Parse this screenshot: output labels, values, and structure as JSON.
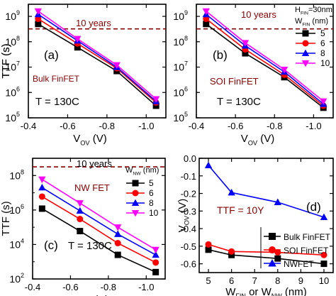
{
  "chart_data": [
    {
      "id": "a",
      "type": "line",
      "panel_label": "(a)",
      "device_label": "Bulk FinFET",
      "temperature_label": "T = 130C",
      "threshold_label": "10 years",
      "threshold_value": 320000000.0,
      "ylabel_main": "TTF (s)",
      "xlabel_main": "V",
      "xlabel_sub": "OV",
      "xlabel_unit": "(V)",
      "log_y": true,
      "ylim": [
        100000,
        3000000000
      ],
      "xlim": [
        -0.4,
        -1.1
      ],
      "xticks": [
        -0.4,
        -0.6,
        -0.8,
        -1.0
      ],
      "xtick_labels": [
        "-0.4",
        "-0.6",
        "-0.8",
        "-1.0"
      ],
      "yticks": [
        100000,
        1000000,
        10000000,
        100000000,
        1000000000
      ],
      "ytick_labels": [
        "10",
        "10",
        "10",
        "10",
        "10"
      ],
      "ytick_exps": [
        "5",
        "6",
        "7",
        "8",
        "9"
      ],
      "x": [
        -0.45,
        -0.65,
        -0.85,
        -1.05
      ],
      "series": [
        {
          "name": "5",
          "marker": "square",
          "color": "#000000",
          "values": [
            500000000.0,
            60000000.0,
            7000000.0,
            300000.0
          ]
        },
        {
          "name": "6",
          "marker": "circle",
          "color": "#ff0000",
          "values": [
            800000000.0,
            85000000.0,
            9000000.0,
            400000.0
          ]
        },
        {
          "name": "8",
          "marker": "triangle-up",
          "color": "#0000ff",
          "values": [
            1200000000.0,
            110000000.0,
            10000000.0,
            450000.0
          ]
        },
        {
          "name": "10",
          "marker": "triangle-down",
          "color": "#ff00ff",
          "values": [
            1600000000.0,
            130000000.0,
            12000000.0,
            550000.0
          ]
        }
      ]
    },
    {
      "id": "b",
      "type": "line",
      "panel_label": "(b)",
      "device_label": "SOI FinFET",
      "temperature_label": "T = 130C",
      "threshold_label": "10 years",
      "threshold_value": 320000000.0,
      "ylabel_main": "TTF (s)",
      "xlabel_main": "V",
      "xlabel_sub": "OV",
      "xlabel_unit": "(V)",
      "log_y": true,
      "ylim": [
        100000,
        3000000000
      ],
      "xlim": [
        -0.4,
        -1.1
      ],
      "xticks": [
        -0.4,
        -0.6,
        -0.8,
        -1.0
      ],
      "xtick_labels": [
        "-0.4",
        "-0.6",
        "-0.8",
        "-1.0"
      ],
      "yticks": [
        100000,
        1000000,
        10000000,
        100000000,
        1000000000
      ],
      "ytick_labels": [
        "10",
        "10",
        "10",
        "10",
        "10"
      ],
      "ytick_exps": [
        "5",
        "6",
        "7",
        "8",
        "9"
      ],
      "legend_header_main": "H",
      "legend_header_sub": "FIN",
      "legend_header_rest": "=30nm",
      "legend_title_main": "W",
      "legend_title_sub": "FIN",
      "legend_title_rest": " (nm)",
      "x": [
        -0.45,
        -0.65,
        -0.85,
        -1.05
      ],
      "series": [
        {
          "name": "5",
          "marker": "square",
          "color": "#000000",
          "values": [
            500000000.0,
            35000000.0,
            4000000.0,
            250000.0
          ]
        },
        {
          "name": "6",
          "marker": "circle",
          "color": "#ff0000",
          "values": [
            800000000.0,
            50000000.0,
            5000000.0,
            300000.0
          ]
        },
        {
          "name": "8",
          "marker": "triangle-up",
          "color": "#0000ff",
          "values": [
            1200000000.0,
            70000000.0,
            6500000.0,
            350000.0
          ]
        },
        {
          "name": "10",
          "marker": "triangle-down",
          "color": "#ff00ff",
          "values": [
            1600000000.0,
            90000000.0,
            8000000.0,
            450000.0
          ]
        }
      ]
    },
    {
      "id": "c",
      "type": "line",
      "panel_label": "(c)",
      "device_label": "NW FET",
      "temperature_label": "T = 130C",
      "threshold_label": "10 years",
      "threshold_value": 320000000.0,
      "ylabel_main": "TTF (s)",
      "xlabel_main": "V",
      "xlabel_sub": "OV",
      "xlabel_unit": "(V)",
      "log_y": true,
      "ylim": [
        100,
        1000000000
      ],
      "xlim": [
        -0.4,
        -1.1
      ],
      "xticks": [
        -0.4,
        -0.6,
        -0.8,
        -1.0
      ],
      "xtick_labels": [
        "-0.4",
        "-0.6",
        "-0.8",
        "-1.0"
      ],
      "yticks": [
        100,
        10000,
        1000000,
        100000000
      ],
      "ytick_labels": [
        "10",
        "10",
        "10",
        "10"
      ],
      "ytick_exps": [
        "2",
        "4",
        "6",
        "8"
      ],
      "legend_title_main": "W",
      "legend_title_sub": "NW",
      "legend_title_rest": " (nm)",
      "x": [
        -0.45,
        -0.65,
        -0.85,
        -1.05
      ],
      "series": [
        {
          "name": "5",
          "marker": "square",
          "color": "#000000",
          "values": [
            1200000.0,
            60000.0,
            2500.0,
            250
          ]
        },
        {
          "name": "6",
          "marker": "circle",
          "color": "#ff0000",
          "values": [
            6000000.0,
            300000.0,
            12000.0,
            900
          ]
        },
        {
          "name": "8",
          "marker": "triangle-up",
          "color": "#0000ff",
          "values": [
            20000000.0,
            900000.0,
            40000.0,
            2500
          ]
        },
        {
          "name": "10",
          "marker": "triangle-down",
          "color": "#ff00ff",
          "values": [
            60000000.0,
            2500000.0,
            100000.0,
            5000
          ]
        }
      ]
    },
    {
      "id": "d",
      "type": "line",
      "panel_label": "(d)",
      "annotation": "TTF = 10Y",
      "ylabel_main": "V",
      "ylabel_sub": "OV",
      "ylabel_unit": "(V)",
      "xlabel_a_main": "W",
      "xlabel_a_sub": "FIN",
      "xlabel_mid": " or ",
      "xlabel_b_main": "W",
      "xlabel_b_sub": "NW",
      "xlabel_unit": " (nm)",
      "log_y": false,
      "xlim": [
        4.6,
        10.4
      ],
      "ylim": [
        -0.65,
        0.0
      ],
      "xticks": [
        5,
        6,
        7,
        8,
        9,
        10
      ],
      "xtick_labels": [
        "5",
        "6",
        "7",
        "8",
        "9",
        "10"
      ],
      "yticks": [
        -0.6,
        -0.5,
        -0.4,
        -0.3,
        -0.2,
        -0.1,
        0.0
      ],
      "ytick_labels": [
        "-0.6",
        "-0.5",
        "-0.4",
        "-0.3",
        "-0.2",
        "-0.1",
        "0.0"
      ],
      "x": [
        5,
        6,
        8,
        10
      ],
      "series": [
        {
          "name": "Bulk FinFET",
          "marker": "square",
          "color": "#000000",
          "values": [
            -0.52,
            -0.55,
            -0.57,
            -0.6
          ]
        },
        {
          "name": "SOI FinFET",
          "marker": "circle",
          "color": "#ff0000",
          "values": [
            -0.49,
            -0.53,
            -0.535,
            -0.55
          ]
        },
        {
          "name": "NWFET",
          "marker": "triangle-up",
          "color": "#0000ff",
          "values": [
            -0.04,
            -0.195,
            -0.25,
            -0.335
          ]
        }
      ]
    }
  ]
}
